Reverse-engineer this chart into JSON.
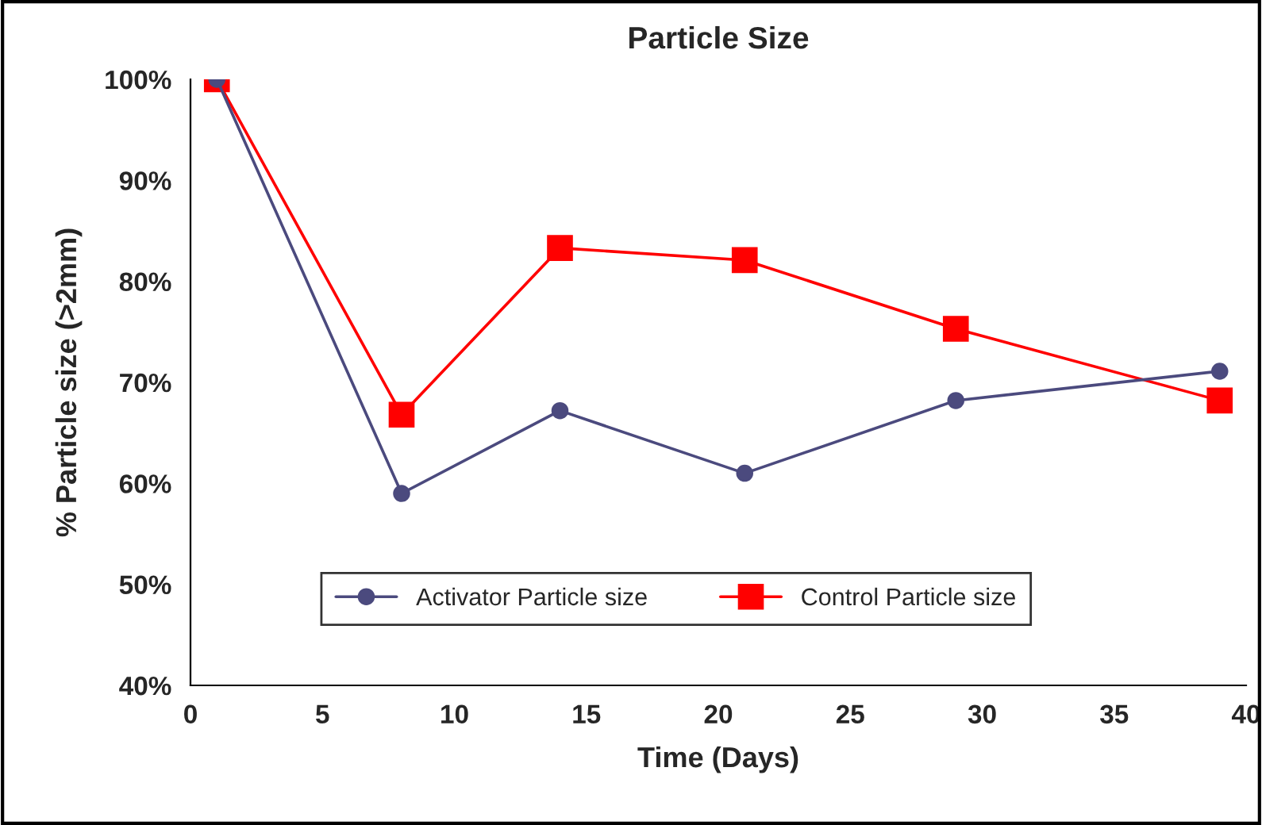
{
  "chart_data": {
    "type": "line",
    "title": "Particle Size",
    "xlabel": "Time (Days)",
    "ylabel": "% Particle size (>2mm)",
    "x": [
      1,
      8,
      14,
      21,
      29,
      39
    ],
    "series": [
      {
        "name": "Activator Particle size",
        "color": "#4b4a7e",
        "marker": "circle",
        "values": [
          100,
          59,
          67.2,
          61,
          68.2,
          71.1
        ]
      },
      {
        "name": "Control Particle size",
        "color": "#ff0000",
        "marker": "square",
        "values": [
          100,
          66.8,
          83.3,
          82.1,
          75.3,
          68.2
        ]
      }
    ],
    "xlim": [
      0,
      40
    ],
    "xticks": [
      0,
      5,
      10,
      15,
      20,
      25,
      30,
      35,
      40
    ],
    "ylim": [
      40,
      100
    ],
    "yticks": [
      {
        "value": 40,
        "label": "40%"
      },
      {
        "value": 50,
        "label": "50%"
      },
      {
        "value": 60,
        "label": "60%"
      },
      {
        "value": 70,
        "label": "70%"
      },
      {
        "value": 80,
        "label": "80%"
      },
      {
        "value": 90,
        "label": "90%"
      },
      {
        "value": 100,
        "label": "100%"
      }
    ],
    "grid": false,
    "legend": "bottom",
    "line_style": "solid"
  }
}
